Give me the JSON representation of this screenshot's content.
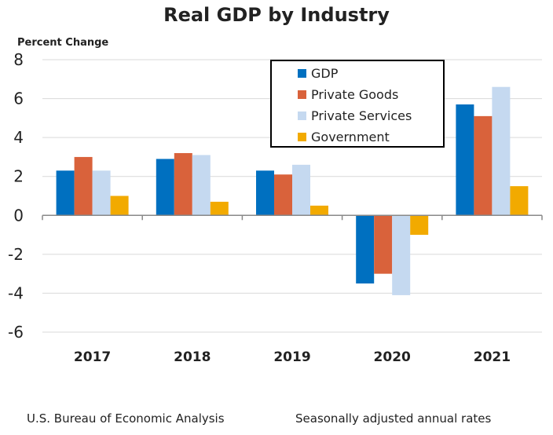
{
  "chart_data": {
    "type": "bar",
    "title": "Real GDP by Industry",
    "ylabel": "Percent Change",
    "xlabel": "",
    "ylim": [
      -6,
      8
    ],
    "yticks": [
      -6,
      -4,
      -2,
      0,
      2,
      4,
      6,
      8
    ],
    "grid": true,
    "legend_placement": "top-center",
    "categories": [
      "2017",
      "2018",
      "2019",
      "2020",
      "2021"
    ],
    "series": [
      {
        "name": "GDP",
        "color": "#0070C0",
        "values": [
          2.3,
          2.9,
          2.3,
          -3.5,
          5.7
        ]
      },
      {
        "name": "Private Goods",
        "color": "#D9623B",
        "values": [
          3.0,
          3.2,
          2.1,
          -3.0,
          5.1
        ]
      },
      {
        "name": "Private Services",
        "color": "#C5D9F0",
        "values": [
          2.3,
          3.1,
          2.6,
          -4.1,
          6.6
        ]
      },
      {
        "name": "Government",
        "color": "#F2AA00",
        "values": [
          1.0,
          0.7,
          0.5,
          -1.0,
          1.5
        ]
      }
    ]
  },
  "footer": {
    "source": "U.S. Bureau of Economic Analysis",
    "note": "Seasonally adjusted annual rates"
  }
}
